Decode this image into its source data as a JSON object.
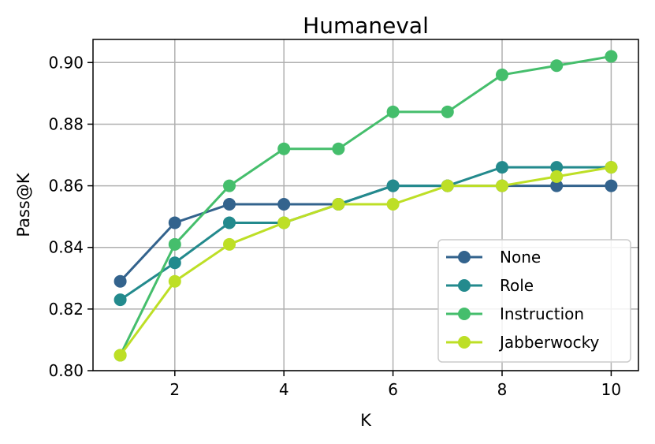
{
  "chart_data": {
    "type": "line",
    "title": "Humaneval",
    "xlabel": "K",
    "ylabel": "Pass@K",
    "xlim": [
      0.5,
      10.5
    ],
    "ylim": [
      0.8,
      0.9075
    ],
    "xticks": [
      2,
      4,
      6,
      8,
      10
    ],
    "xtick_labels": [
      "2",
      "4",
      "6",
      "8",
      "10"
    ],
    "yticks": [
      0.8,
      0.82,
      0.84,
      0.86,
      0.88,
      0.9
    ],
    "ytick_labels": [
      "0.80",
      "0.82",
      "0.84",
      "0.86",
      "0.88",
      "0.90"
    ],
    "grid": true,
    "legend_position": "lower-right",
    "x": [
      1,
      2,
      3,
      4,
      5,
      6,
      7,
      8,
      9,
      10
    ],
    "series": [
      {
        "name": "None",
        "color": "#33638d",
        "values": [
          0.829,
          0.848,
          0.854,
          0.854,
          0.854,
          0.86,
          0.86,
          0.86,
          0.86,
          0.86
        ]
      },
      {
        "name": "Role",
        "color": "#238a8d",
        "values": [
          0.823,
          0.835,
          0.848,
          0.848,
          0.854,
          0.86,
          0.86,
          0.866,
          0.866,
          0.866
        ]
      },
      {
        "name": "Instruction",
        "color": "#45be6c",
        "values": [
          0.805,
          0.841,
          0.86,
          0.872,
          0.872,
          0.884,
          0.884,
          0.896,
          0.899,
          0.902
        ]
      },
      {
        "name": "Jabberwocky",
        "color": "#bddf26",
        "values": [
          0.805,
          0.829,
          0.841,
          0.848,
          0.854,
          0.854,
          0.86,
          0.86,
          0.863,
          0.866
        ]
      }
    ]
  }
}
